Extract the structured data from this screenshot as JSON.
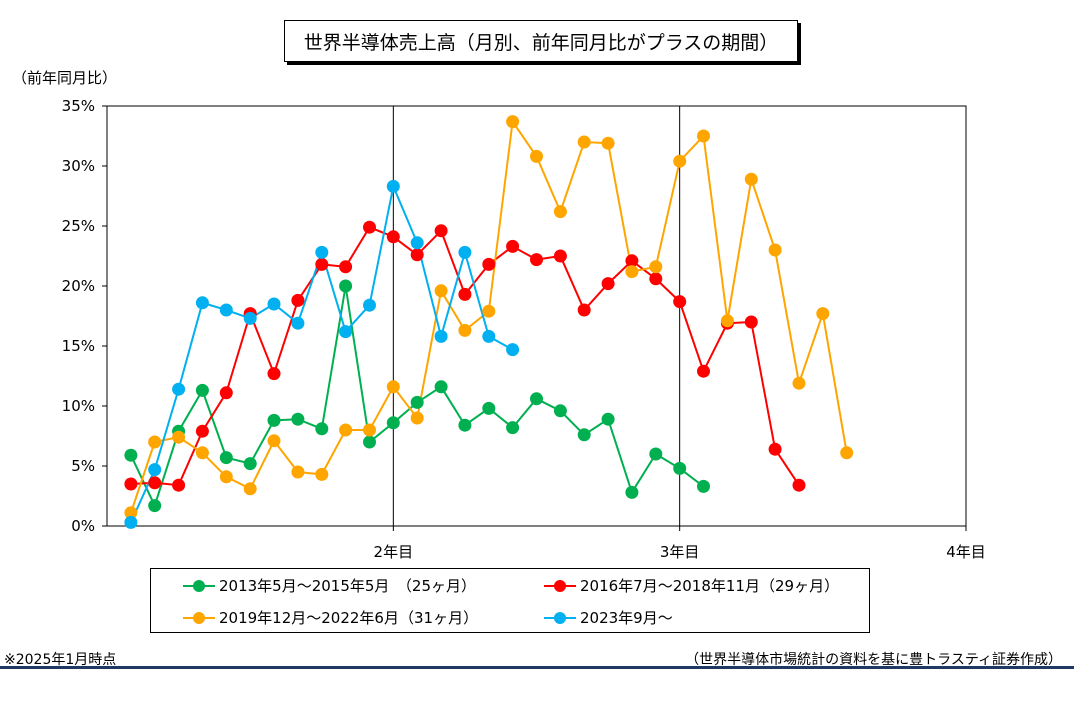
{
  "title": "世界半導体売上高（月別、前年同月比がプラスの期間）",
  "footnote": "※2025年1月時点",
  "source": "（世界半導体市場統計の資料を基に豊トラスティ証券作成）",
  "chart_data": {
    "type": "line",
    "title": "世界半導体売上高（月別、前年同月比がプラスの期間）",
    "ylabel": "（前年同月比）",
    "xlabel": "",
    "y_unit": "%",
    "ylim": [
      0,
      35
    ],
    "y_ticks": [
      0,
      5,
      10,
      15,
      20,
      25,
      30,
      35
    ],
    "y_tick_labels": [
      "0%",
      "5%",
      "10%",
      "15%",
      "20%",
      "25%",
      "30%",
      "35%"
    ],
    "xlim": [
      0,
      36
    ],
    "x_ticks": [
      12,
      24,
      36
    ],
    "x_tick_labels": [
      "2年目",
      "3年目",
      "4年目"
    ],
    "vertical_lines_at": [
      12,
      24
    ],
    "grid": false,
    "legend_position": "bottom",
    "series": [
      {
        "name": "2013年5月～2015年5月　（25ヶ月）",
        "color": "#00b050",
        "x": [
          1,
          2,
          3,
          4,
          5,
          6,
          7,
          8,
          9,
          10,
          11,
          12,
          13,
          14,
          15,
          16,
          17,
          18,
          19,
          20,
          21,
          22,
          23,
          24,
          25
        ],
        "values": [
          5.9,
          1.7,
          7.9,
          11.3,
          5.7,
          5.2,
          8.8,
          8.9,
          8.1,
          20.0,
          7.0,
          8.6,
          10.3,
          11.6,
          8.4,
          9.8,
          8.2,
          10.6,
          9.6,
          7.6,
          8.9,
          2.8,
          6.0,
          4.8,
          3.3
        ]
      },
      {
        "name": "2016年7月～2018年11月（29ヶ月）",
        "color": "#ff0000",
        "x": [
          1,
          2,
          3,
          4,
          5,
          6,
          7,
          8,
          9,
          10,
          11,
          12,
          13,
          14,
          15,
          16,
          17,
          18,
          19,
          20,
          21,
          22,
          23,
          24,
          25,
          26,
          27,
          28,
          29
        ],
        "values": [
          3.5,
          3.6,
          3.4,
          7.9,
          11.1,
          17.7,
          12.7,
          18.8,
          21.8,
          21.6,
          24.9,
          24.1,
          22.6,
          24.6,
          19.3,
          21.8,
          23.3,
          22.2,
          22.5,
          18.0,
          20.2,
          22.1,
          20.6,
          18.7,
          12.9,
          16.9,
          17.0,
          6.4,
          3.4
        ]
      },
      {
        "name": "2019年12月～2022年6月（31ヶ月）",
        "color": "#ffa500",
        "x": [
          1,
          2,
          3,
          4,
          5,
          6,
          7,
          8,
          9,
          10,
          11,
          12,
          13,
          14,
          15,
          16,
          17,
          18,
          19,
          20,
          21,
          22,
          23,
          24,
          25,
          26,
          27,
          28,
          29,
          30,
          31
        ],
        "values": [
          1.1,
          7.0,
          7.4,
          6.1,
          4.1,
          3.1,
          7.1,
          4.5,
          4.3,
          8.0,
          8.0,
          11.6,
          9.0,
          19.6,
          16.3,
          17.9,
          33.7,
          30.8,
          26.2,
          32.0,
          31.9,
          21.2,
          21.6,
          30.4,
          32.5,
          17.1,
          28.9,
          23.0,
          11.9,
          17.7,
          6.1
        ]
      },
      {
        "name": "2023年9月～",
        "color": "#00b0f0",
        "x": [
          1,
          2,
          3,
          4,
          5,
          6,
          7,
          8,
          9,
          10,
          11,
          12,
          13,
          14,
          15,
          16,
          17
        ],
        "values": [
          0.3,
          4.7,
          11.4,
          18.6,
          18.0,
          17.3,
          18.5,
          16.9,
          22.8,
          16.2,
          18.4,
          28.3,
          23.6,
          15.8,
          22.8,
          15.8,
          14.7
        ]
      }
    ]
  }
}
